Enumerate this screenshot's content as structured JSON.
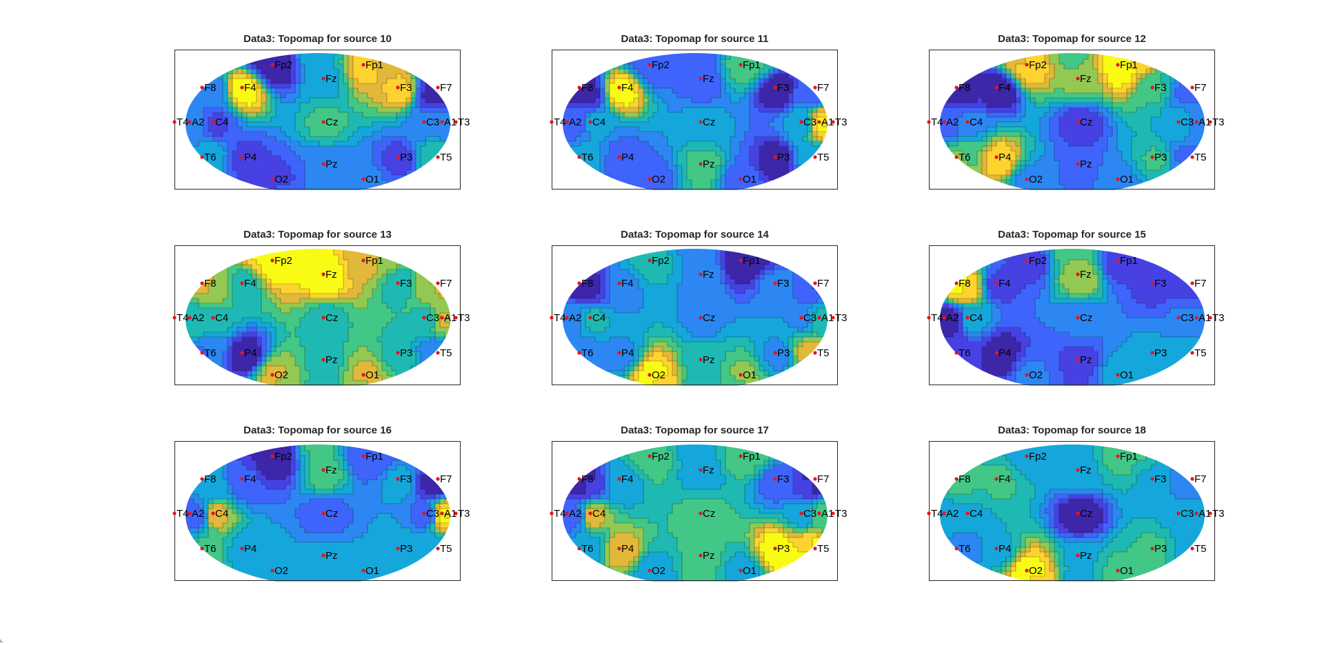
{
  "chart_data": [
    {
      "type": "heatmap",
      "title": "Data3: Topomap for source 10",
      "values": [
        2,
        5,
        8,
        4,
        9,
        8,
        2,
        4,
        3,
        6,
        4,
        4,
        5,
        3,
        4,
        3,
        6,
        3,
        4
      ]
    },
    {
      "type": "heatmap",
      "title": "Data3: Topomap for source 11",
      "values": [
        4,
        4,
        6,
        3,
        8,
        3,
        4,
        4,
        5,
        5,
        5,
        8,
        5,
        4,
        6,
        3,
        5,
        4,
        4
      ]
    },
    {
      "type": "heatmap",
      "title": "Data3: Topomap for source 12",
      "values": [
        9,
        7,
        10,
        1,
        1,
        6,
        3,
        3,
        4,
        2,
        5,
        4,
        7,
        9,
        3,
        6,
        3,
        4,
        4
      ]
    },
    {
      "type": "heatmap",
      "title": "Data3: Topomap for source 13",
      "values": [
        6,
        6,
        5,
        5,
        4,
        4,
        5,
        4,
        4,
        4,
        4,
        5,
        3,
        2,
        4,
        4,
        3,
        5,
        5
      ]
    },
    {
      "type": "heatmap",
      "title": "Data3: Topomap for source 14",
      "values": [
        4,
        3,
        1,
        1,
        3,
        3,
        2,
        3,
        4,
        3,
        3,
        4,
        3,
        3,
        4,
        3,
        6,
        7,
        5
      ]
    },
    {
      "type": "heatmap",
      "title": "Data3: Topomap for source 15",
      "values": [
        3,
        7,
        3,
        9,
        3,
        3,
        3,
        2,
        5,
        4,
        4,
        4,
        3,
        2,
        3,
        5,
        5,
        4,
        5
      ]
    },
    {
      "type": "heatmap",
      "title": "Data3: Topomap for source 16",
      "values": [
        2,
        5,
        3,
        4,
        3,
        4,
        2,
        3,
        6,
        3,
        3,
        7,
        5,
        4,
        4,
        4,
        4,
        4,
        4
      ]
    },
    {
      "type": "heatmap",
      "title": "Data3: Topomap for source 17",
      "values": [
        5,
        4,
        5,
        2,
        4,
        3,
        2,
        3,
        6,
        5,
        4,
        5,
        4,
        6,
        5,
        7,
        7,
        4,
        4
      ]
    },
    {
      "type": "heatmap",
      "title": "Data3: Topomap for source 18",
      "values": [
        4,
        4,
        5,
        5,
        5,
        4,
        3,
        4,
        4,
        1,
        4,
        4,
        3,
        4,
        4,
        5,
        4,
        8,
        5
      ]
    }
  ],
  "electrodes": [
    "Fp2",
    "Fz",
    "Fp1",
    "F8",
    "F4",
    "F3",
    "F7",
    "T4",
    "A2",
    "C4",
    "Cz",
    "C3",
    "A1",
    "T3",
    "T6",
    "P4",
    "Pz",
    "P3",
    "T5",
    "O2",
    "O1"
  ],
  "colors": {
    "axis": "#262626",
    "marker": "#e5141c",
    "contour_line": "#000000",
    "colormap": [
      "#3d26a8",
      "#4741e3",
      "#3f64fb",
      "#2c87f2",
      "#15a7db",
      "#1eb9b2",
      "#42c786",
      "#93c953",
      "#e1b83a",
      "#fed330",
      "#f9fb14"
    ]
  }
}
